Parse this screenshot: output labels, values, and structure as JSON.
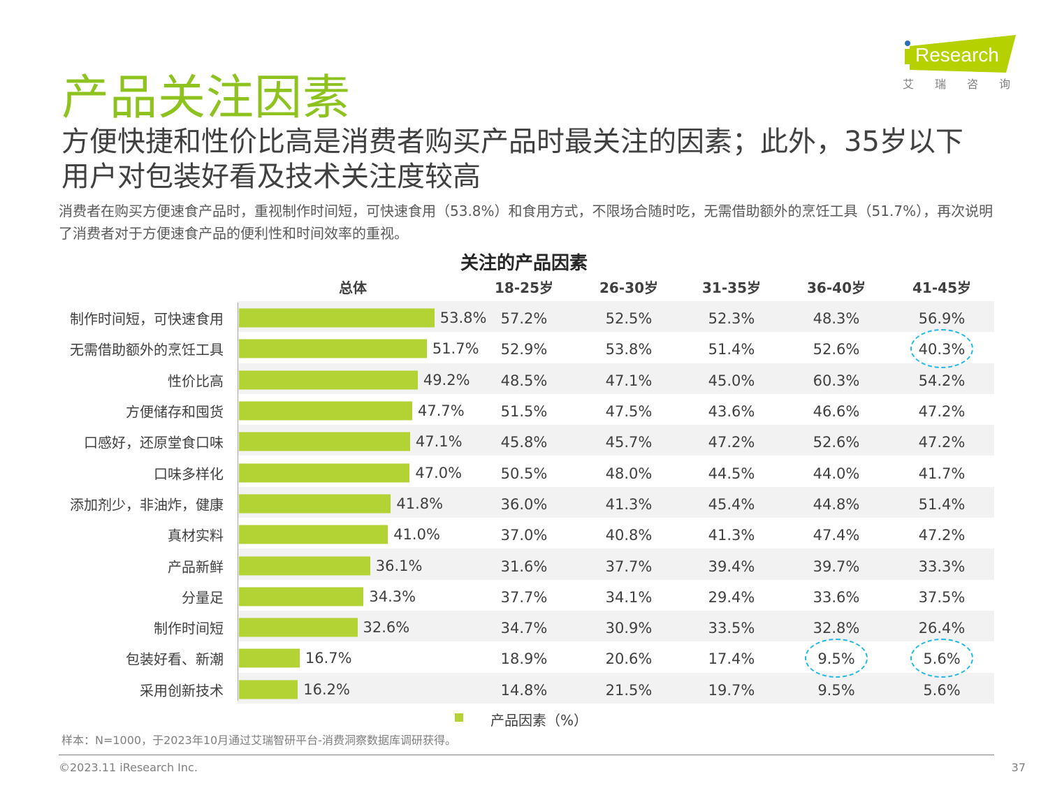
{
  "logo": {
    "text": "iResearch",
    "sub": "艾 瑞 咨 询",
    "brand_color": "#b5d100",
    "dot_color": "#2a6fb7"
  },
  "title": "产品关注因素",
  "subtitle": "方便快捷和性价比高是消费者购买产品时最关注的因素；此外，35岁以下用户对包装好看及技术关注度较高",
  "description": "消费者在购买方便速食产品时，重视制作时间短，可快速食用（53.8%）和食用方式，不限场合随时吃，无需借助额外的烹饪工具（51.7%），再次说明了消费者对于方便速食产品的便利性和时间效率的重视。",
  "chart_data": {
    "type": "bar",
    "orientation": "horizontal",
    "title": "关注的产品因素",
    "columns": [
      "总体",
      "18-25岁",
      "26-30岁",
      "31-35岁",
      "36-40岁",
      "41-45岁"
    ],
    "categories": [
      "制作时间短，可快速食用",
      "无需借助额外的烹饪工具",
      "性价比高",
      "方便储存和囤货",
      "口感好，还原堂食口味",
      "口味多样化",
      "添加剂少，非油炸，健康",
      "真材实料",
      "产品新鲜",
      "分量足",
      "制作时间短",
      "包装好看、新潮",
      "采用创新技术"
    ],
    "series": [
      {
        "name": "产品因素（%）",
        "values": [
          53.8,
          51.7,
          49.2,
          47.7,
          47.1,
          47.0,
          41.8,
          41.0,
          36.1,
          34.3,
          32.6,
          16.7,
          16.2
        ]
      }
    ],
    "table": [
      [
        "57.2%",
        "52.5%",
        "52.3%",
        "48.3%",
        "56.9%"
      ],
      [
        "52.9%",
        "53.8%",
        "51.4%",
        "52.6%",
        "40.3%"
      ],
      [
        "48.5%",
        "47.1%",
        "45.0%",
        "60.3%",
        "54.2%"
      ],
      [
        "51.5%",
        "47.5%",
        "43.6%",
        "46.6%",
        "47.2%"
      ],
      [
        "45.8%",
        "45.7%",
        "47.2%",
        "52.6%",
        "47.2%"
      ],
      [
        "50.5%",
        "48.0%",
        "44.5%",
        "44.0%",
        "41.7%"
      ],
      [
        "36.0%",
        "41.3%",
        "45.4%",
        "44.8%",
        "51.4%"
      ],
      [
        "37.0%",
        "40.8%",
        "41.3%",
        "47.4%",
        "47.2%"
      ],
      [
        "31.6%",
        "37.7%",
        "39.4%",
        "39.7%",
        "33.3%"
      ],
      [
        "37.7%",
        "34.1%",
        "29.4%",
        "33.6%",
        "37.5%"
      ],
      [
        "34.7%",
        "30.9%",
        "33.5%",
        "32.8%",
        "26.4%"
      ],
      [
        "18.9%",
        "20.6%",
        "17.4%",
        "9.5%",
        "5.6%"
      ],
      [
        "14.8%",
        "21.5%",
        "19.7%",
        "9.5%",
        "5.6%"
      ]
    ],
    "highlighted_cells": [
      [
        1,
        4
      ],
      [
        11,
        3
      ],
      [
        11,
        4
      ]
    ],
    "bar_color": "#b3d234",
    "highlight_color": "#1fb8e8",
    "legend": "bottom"
  },
  "note": "样本：N=1000，于2023年10月通过艾瑞智研平台-消费洞察数据库调研获得。",
  "footer": {
    "copyright": "©2023.11 iResearch Inc.",
    "page": "37"
  }
}
